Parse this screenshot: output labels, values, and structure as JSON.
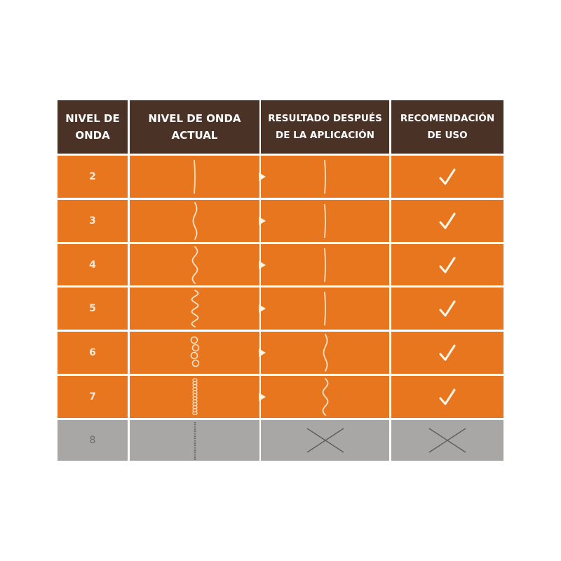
{
  "header": {
    "col1": "NIVEL DE\nONDA",
    "col2": "NIVEL DE ONDA\nACTUAL",
    "col3": "RESULTADO DESPUÉS\nDE LA APLICACIÓN",
    "col4": "RECOMENDACIÓN\nDE USO"
  },
  "colors": {
    "header": "#4b3226",
    "recommended": "#e8761f",
    "not_recommended": "#a9a7a5",
    "lines": "#fbe3c8"
  },
  "rows": [
    {
      "level": "2",
      "current_icon": "wave-straight-icon",
      "result_icon": "wave-straight-icon",
      "recommendation_icon": "check-icon",
      "recommended": true
    },
    {
      "level": "3",
      "current_icon": "wave-slight-icon",
      "result_icon": "wave-straight-icon",
      "recommendation_icon": "check-icon",
      "recommended": true
    },
    {
      "level": "4",
      "current_icon": "wave-medium-icon",
      "result_icon": "wave-straight-icon",
      "recommendation_icon": "check-icon",
      "recommended": true
    },
    {
      "level": "5",
      "current_icon": "wave-strong-icon",
      "result_icon": "wave-straight-icon",
      "recommendation_icon": "check-icon",
      "recommended": true
    },
    {
      "level": "6",
      "current_icon": "curl-loops-icon",
      "result_icon": "wave-slight-icon",
      "recommendation_icon": "check-icon",
      "recommended": true
    },
    {
      "level": "7",
      "current_icon": "coil-tight-icon",
      "result_icon": "wave-medium-icon",
      "recommendation_icon": "check-icon",
      "recommended": true
    },
    {
      "level": "8",
      "current_icon": "coil-kinky-icon",
      "result_icon": "cross-icon",
      "recommendation_icon": "cross-icon",
      "recommended": false
    }
  ]
}
